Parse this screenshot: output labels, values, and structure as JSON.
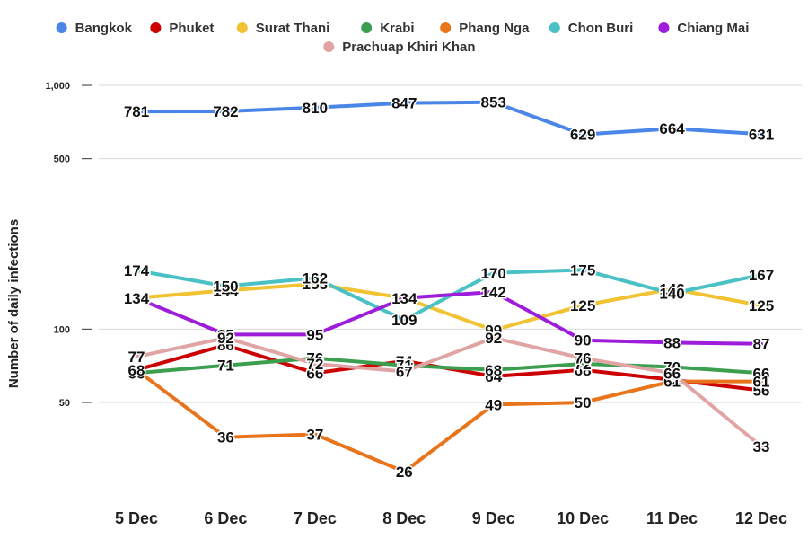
{
  "chart_data": {
    "type": "line",
    "title": "",
    "xlabel": "",
    "ylabel": "Number of daily infections",
    "yscale": "log",
    "ylim": [
      22,
      1000
    ],
    "yticks": [
      {
        "value": 1000,
        "label": "1,000"
      },
      {
        "value": 500,
        "label": "500"
      },
      {
        "value": 100,
        "label": "100"
      },
      {
        "value": 50,
        "label": "50"
      }
    ],
    "grid": true,
    "legend_position": "top",
    "categories": [
      "5 Dec",
      "6 Dec",
      "7 Dec",
      "8 Dec",
      "9 Dec",
      "10 Dec",
      "11 Dec",
      "12 Dec"
    ],
    "series": [
      {
        "name": "Bangkok",
        "color": "#4a86e8",
        "values": [
          781,
          782,
          810,
          847,
          853,
          629,
          664,
          631
        ]
      },
      {
        "name": "Phuket",
        "color": "#cc0000",
        "values": [
          68,
          86,
          66,
          74,
          64,
          68,
          62,
          56
        ]
      },
      {
        "name": "Surat Thani",
        "color": "#f1c232",
        "values": [
          134,
          144,
          153,
          134,
          99,
          125,
          146,
          125
        ]
      },
      {
        "name": "Krabi",
        "color": "#3c9e4f",
        "values": [
          66,
          71,
          76,
          71,
          68,
          72,
          70,
          66
        ]
      },
      {
        "name": "Phang Nga",
        "color": "#e8741c",
        "values": [
          68,
          36,
          37,
          26,
          49,
          50,
          61,
          61
        ]
      },
      {
        "name": "Chon Buri",
        "color": "#4ac1c4",
        "values": [
          174,
          150,
          162,
          109,
          170,
          175,
          140,
          167
        ]
      },
      {
        "name": "Chiang Mai",
        "color": "#9d1ddb",
        "values": [
          134,
          95,
          95,
          134,
          142,
          90,
          88,
          87
        ]
      },
      {
        "name": "Prachuap Khiri Khan",
        "color": "#e0a4a4",
        "values": [
          77,
          92,
          72,
          67,
          92,
          76,
          66,
          33
        ]
      }
    ]
  }
}
